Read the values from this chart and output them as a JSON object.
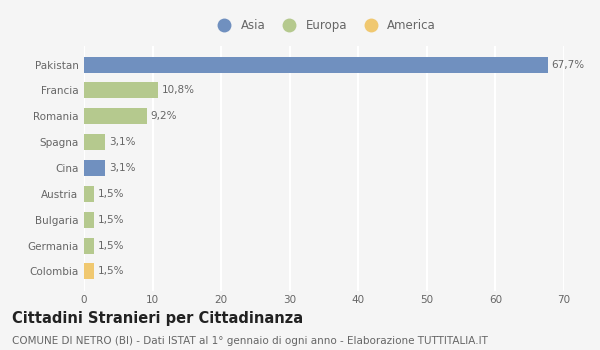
{
  "categories": [
    "Pakistan",
    "Francia",
    "Romania",
    "Spagna",
    "Cina",
    "Austria",
    "Bulgaria",
    "Germania",
    "Colombia"
  ],
  "values": [
    67.7,
    10.8,
    9.2,
    3.1,
    3.1,
    1.5,
    1.5,
    1.5,
    1.5
  ],
  "labels": [
    "67,7%",
    "10,8%",
    "9,2%",
    "3,1%",
    "3,1%",
    "1,5%",
    "1,5%",
    "1,5%",
    "1,5%"
  ],
  "colors": [
    "#7090bf",
    "#b5c98e",
    "#b5c98e",
    "#b5c98e",
    "#7090bf",
    "#b5c98e",
    "#b5c98e",
    "#b5c98e",
    "#f0c870"
  ],
  "legend_labels": [
    "Asia",
    "Europa",
    "America"
  ],
  "legend_colors": [
    "#7090bf",
    "#b5c98e",
    "#f0c870"
  ],
  "xlim": [
    0,
    70
  ],
  "xticks": [
    0,
    10,
    20,
    30,
    40,
    50,
    60,
    70
  ],
  "title": "Cittadini Stranieri per Cittadinanza",
  "subtitle": "COMUNE DI NETRO (BI) - Dati ISTAT al 1° gennaio di ogni anno - Elaborazione TUTTITALIA.IT",
  "bg_color": "#f5f5f5",
  "grid_color": "#ffffff",
  "bar_height": 0.62,
  "label_fontsize": 7.5,
  "title_fontsize": 10.5,
  "subtitle_fontsize": 7.5,
  "tick_fontsize": 7.5,
  "legend_fontsize": 8.5
}
